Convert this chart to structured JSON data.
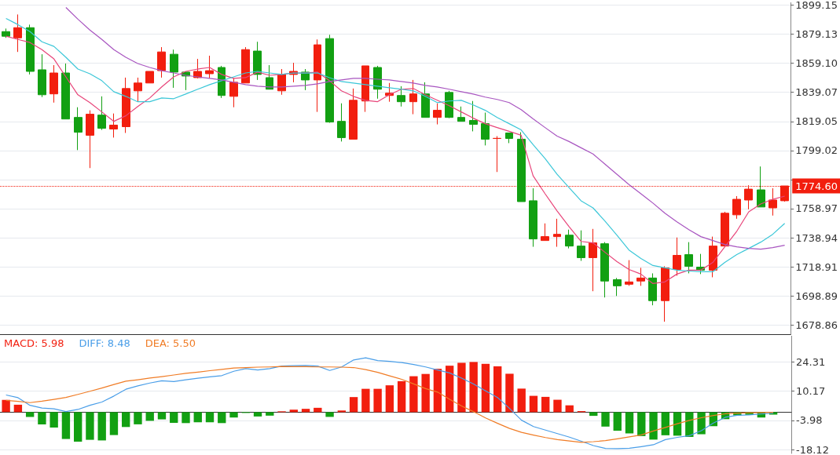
{
  "chart_data": [
    {
      "type": "candlestick",
      "categories": [
        null,
        null,
        null,
        null,
        null,
        null,
        null,
        null,
        null,
        null,
        null,
        null,
        null,
        null,
        null,
        null,
        null,
        null,
        null,
        null,
        null,
        null,
        null,
        null,
        null,
        null,
        null,
        null,
        null,
        null,
        null,
        null,
        null,
        null,
        null,
        null,
        null,
        null,
        null,
        null,
        null,
        null,
        null,
        null,
        null,
        null,
        null,
        null,
        null,
        null,
        null,
        null,
        null,
        null,
        null,
        null,
        null,
        null,
        null,
        null,
        null,
        null,
        null,
        null,
        null,
        null
      ],
      "ohlc": [
        [
          1880.9,
          1883.0,
          1876.6,
          1877.7
        ],
        [
          1876.6,
          1892.7,
          1866.9,
          1883.6
        ],
        [
          1883.6,
          1885.7,
          1851.4,
          1853.5
        ],
        [
          1854.6,
          1865.3,
          1835.8,
          1837.4
        ],
        [
          1838.0,
          1857.8,
          1832.0,
          1852.4
        ],
        [
          1852.4,
          1858.9,
          1820.7,
          1820.7
        ],
        [
          1821.8,
          1828.8,
          1799.3,
          1811.6
        ],
        [
          1809.5,
          1826.7,
          1786.9,
          1824.0
        ],
        [
          1823.4,
          1836.3,
          1813.2,
          1814.3
        ],
        [
          1813.8,
          1824.5,
          1807.9,
          1816.5
        ],
        [
          1815.4,
          1849.2,
          1811.1,
          1841.7
        ],
        [
          1840.1,
          1849.2,
          1832.6,
          1845.5
        ],
        [
          1845.5,
          1853.5,
          1845.5,
          1853.5
        ],
        [
          1854.0,
          1870.2,
          1849.2,
          1866.9
        ],
        [
          1865.3,
          1868.5,
          1842.2,
          1853.0
        ],
        [
          1853.0,
          1853.5,
          1840.6,
          1850.3
        ],
        [
          1849.2,
          1862.1,
          1848.7,
          1853.5
        ],
        [
          1851.9,
          1864.3,
          1848.7,
          1854.0
        ],
        [
          1856.2,
          1857.3,
          1835.2,
          1836.9
        ],
        [
          1836.3,
          1848.7,
          1828.8,
          1846.0
        ],
        [
          1845.5,
          1870.2,
          1845.5,
          1868.5
        ],
        [
          1867.5,
          1873.9,
          1847.6,
          1851.4
        ],
        [
          1849.2,
          1857.8,
          1841.2,
          1841.2
        ],
        [
          1840.1,
          1855.1,
          1837.4,
          1851.4
        ],
        [
          1851.4,
          1859.4,
          1846.0,
          1853.5
        ],
        [
          1853.0,
          1855.1,
          1840.6,
          1847.6
        ],
        [
          1847.6,
          1875.5,
          1825.6,
          1871.8
        ],
        [
          1876.1,
          1878.7,
          1818.1,
          1818.6
        ],
        [
          1819.1,
          1831.5,
          1805.2,
          1807.9
        ],
        [
          1806.8,
          1841.7,
          1806.8,
          1833.6
        ],
        [
          1833.1,
          1857.3,
          1825.6,
          1857.3
        ],
        [
          1856.2,
          1857.3,
          1834.7,
          1841.2
        ],
        [
          1836.9,
          1845.5,
          1832.6,
          1838.5
        ],
        [
          1836.9,
          1843.3,
          1829.3,
          1832.6
        ],
        [
          1832.6,
          1847.6,
          1824.0,
          1838.0
        ],
        [
          1838.0,
          1846.0,
          1821.8,
          1821.8
        ],
        [
          1821.8,
          1831.5,
          1817.0,
          1826.7
        ],
        [
          1839.0,
          1840.1,
          1821.3,
          1821.8
        ],
        [
          1821.8,
          1829.3,
          1819.1,
          1819.1
        ],
        [
          1819.7,
          1833.1,
          1812.2,
          1817.0
        ],
        [
          1817.5,
          1825.1,
          1802.5,
          1806.8
        ],
        [
          1807.3,
          1808.9,
          1784.2,
          1807.4
        ],
        [
          1811.1,
          1811.1,
          1804.1,
          1807.3
        ],
        [
          1806.8,
          1811.6,
          1763.8,
          1763.8
        ],
        [
          1764.4,
          1773.0,
          1732.7,
          1738.1
        ],
        [
          1737.0,
          1748.8,
          1737.0,
          1739.7
        ],
        [
          1739.7,
          1752.0,
          1732.7,
          1741.3
        ],
        [
          1740.7,
          1744.5,
          1731.6,
          1733.2
        ],
        [
          1733.2,
          1744.0,
          1723.0,
          1725.2
        ],
        [
          1725.2,
          1745.0,
          1702.1,
          1735.4
        ],
        [
          1734.8,
          1735.9,
          1697.8,
          1709.1
        ],
        [
          1710.1,
          1711.2,
          1698.8,
          1705.8
        ],
        [
          1706.9,
          1723.5,
          1705.8,
          1708.5
        ],
        [
          1709.1,
          1718.2,
          1705.8,
          1711.2
        ],
        [
          1711.2,
          1714.4,
          1692.4,
          1695.6
        ],
        [
          1695.6,
          1719.3,
          1681.1,
          1718.2
        ],
        [
          1717.1,
          1739.1,
          1712.8,
          1726.8
        ],
        [
          1727.3,
          1735.9,
          1714.4,
          1719.3
        ],
        [
          1718.7,
          1727.8,
          1713.9,
          1716.6
        ],
        [
          1716.6,
          1739.7,
          1711.7,
          1733.2
        ],
        [
          1733.2,
          1756.8,
          1733.2,
          1755.8
        ],
        [
          1754.7,
          1767.6,
          1752.0,
          1765.4
        ],
        [
          1764.9,
          1775.1,
          1758.5,
          1772.4
        ],
        [
          1771.9,
          1788.0,
          1760.1,
          1760.1
        ],
        [
          1759.5,
          1773.0,
          1754.2,
          1764.9
        ],
        [
          1764.4,
          1774.6,
          1763.8,
          1774.6
        ]
      ],
      "colors": [
        "#12a012",
        "#f21e0e",
        "#12a012",
        "#12a012",
        "#f21e0e",
        "#12a012",
        "#12a012",
        "#f21e0e",
        "#12a012",
        "#f21e0e",
        "#f21e0e",
        "#f21e0e",
        "#f21e0e",
        "#f21e0e",
        "#12a012",
        "#12a012",
        "#f21e0e",
        "#f21e0e",
        "#12a012",
        "#f21e0e",
        "#f21e0e",
        "#12a012",
        "#12a012",
        "#f21e0e",
        "#f21e0e",
        "#12a012",
        "#f21e0e",
        "#12a012",
        "#12a012",
        "#f21e0e",
        "#f21e0e",
        "#12a012",
        "#f21e0e",
        "#12a012",
        "#f21e0e",
        "#12a012",
        "#f21e0e",
        "#12a012",
        "#12a012",
        "#12a012",
        "#12a012",
        "#f21e0e",
        "#12a012",
        "#12a012",
        "#12a012",
        "#f21e0e",
        "#f21e0e",
        "#12a012",
        "#12a012",
        "#f21e0e",
        "#12a012",
        "#12a012",
        "#f21e0e",
        "#f21e0e",
        "#12a012",
        "#f21e0e",
        "#f21e0e",
        "#12a012",
        "#12a012",
        "#f21e0e",
        "#f21e0e",
        "#f21e0e",
        "#f21e0e",
        "#12a012",
        "#f21e0e",
        "#f21e0e"
      ],
      "series": [
        {
          "type": "line",
          "color": "#e8457a",
          "values": [
            1877.7,
            1875.5,
            1873.4,
            1868.5,
            1862.1,
            1849.7,
            1837.4,
            1832.0,
            1825.6,
            1819.1,
            1822.9,
            1829.3,
            1835.2,
            1842.8,
            1849.7,
            1853.5,
            1855.1,
            1856.2,
            1851.4,
            1848.7,
            1849.2,
            1853.0,
            1850.8,
            1851.4,
            1852.4,
            1852.4,
            1853.0,
            1847.1,
            1840.1,
            1836.3,
            1833.6,
            1832.6,
            1837.4,
            1841.2,
            1841.7,
            1837.4,
            1833.6,
            1829.9,
            1825.6,
            1821.3,
            1817.5,
            1814.8,
            1812.2,
            1809.5,
            1781.6,
            1769.2,
            1757.4,
            1746.6,
            1736.4,
            1735.4,
            1728.9,
            1722.5,
            1717.1,
            1713.9,
            1707.4,
            1708.5,
            1713.9,
            1716.6,
            1716.6,
            1721.9,
            1732.7,
            1743.4,
            1756.8,
            1762.2,
            1765.4,
            1767.6
          ]
        },
        {
          "type": "line",
          "color": "#3cc7d8",
          "values": [
            1890.0,
            1885.7,
            1880.9,
            1873.9,
            1870.7,
            1863.2,
            1855.1,
            1851.9,
            1847.1,
            1839.5,
            1836.3,
            1832.6,
            1832.6,
            1835.2,
            1834.7,
            1837.9,
            1841.2,
            1844.4,
            1847.1,
            1849.7,
            1852.4,
            1853.5,
            1852.4,
            1851.4,
            1852.4,
            1852.4,
            1852.4,
            1849.2,
            1846.5,
            1845.5,
            1844.4,
            1843.3,
            1842.2,
            1841.2,
            1840.1,
            1836.3,
            1832.0,
            1833.1,
            1833.6,
            1830.4,
            1826.7,
            1821.8,
            1817.5,
            1813.2,
            1803.0,
            1793.4,
            1782.6,
            1773.5,
            1764.4,
            1759.5,
            1750.4,
            1740.7,
            1730.5,
            1724.6,
            1719.8,
            1718.2,
            1716.6,
            1716.0,
            1715.5,
            1715.5,
            1721.9,
            1727.3,
            1731.6,
            1735.9,
            1741.3,
            1748.8
          ]
        },
        {
          "type": "line",
          "color": "#a855c0",
          "values": [
            null,
            null,
            null,
            null,
            null,
            1897.5,
            1889.5,
            1882.0,
            1875.5,
            1868.5,
            1863.2,
            1858.9,
            1856.2,
            1854.0,
            1852.4,
            1850.8,
            1849.7,
            1848.7,
            1847.6,
            1846.0,
            1844.4,
            1843.3,
            1842.8,
            1842.8,
            1843.3,
            1843.8,
            1844.9,
            1846.5,
            1847.6,
            1848.7,
            1848.7,
            1848.1,
            1847.6,
            1846.5,
            1845.5,
            1843.8,
            1842.8,
            1841.2,
            1839.5,
            1837.9,
            1835.8,
            1834.2,
            1832.0,
            1827.2,
            1820.8,
            1814.8,
            1808.9,
            1805.2,
            1800.9,
            1796.6,
            1789.6,
            1782.6,
            1775.6,
            1769.2,
            1762.8,
            1755.8,
            1749.9,
            1744.5,
            1739.7,
            1737.0,
            1734.3,
            1732.7,
            1731.6,
            1731.1,
            1732.1,
            1733.8
          ]
        }
      ],
      "ylim": [
        1672.5,
        1900.8
      ],
      "yticks": [
        1899.15,
        1879.13,
        {
          "value": 1859.1,
          "label": "1859.10"
        },
        1839.07,
        1819.05,
        1799.02,
        {
          "value": 1778.99,
          "label": null
        },
        1758.97,
        1738.94,
        1718.91,
        1698.89,
        1678.86
      ],
      "ref_lines": [
        {
          "axis": "y",
          "value": 1774.6,
          "label": "1774.60",
          "color": "#f21e0e",
          "line_style": "dotted"
        }
      ],
      "grid": "y",
      "tick_labels": "y",
      "marker": "none"
    },
    {
      "type": "bar",
      "categories": [
        null,
        null,
        null,
        null,
        null,
        null,
        null,
        null,
        null,
        null,
        null,
        null,
        null,
        null,
        null,
        null,
        null,
        null,
        null,
        null,
        null,
        null,
        null,
        null,
        null,
        null,
        null,
        null,
        null,
        null,
        null,
        null,
        null,
        null,
        null,
        null,
        null,
        null,
        null,
        null,
        null,
        null,
        null,
        null,
        null,
        null,
        null,
        null,
        null,
        null,
        null,
        null,
        null,
        null,
        null,
        null,
        null,
        null,
        null,
        null,
        null,
        null,
        null,
        null,
        null,
        null
      ],
      "series": [
        {
          "name": "MACD: 5.98",
          "type": "bar",
          "color": "#f21e0e",
          "colors": [
            "#f21e0e",
            "#f21e0e",
            "#12a012",
            "#12a012",
            "#12a012",
            "#12a012",
            "#12a012",
            "#12a012",
            "#12a012",
            "#12a012",
            "#12a012",
            "#12a012",
            "#12a012",
            "#12a012",
            "#12a012",
            "#12a012",
            "#12a012",
            "#12a012",
            "#12a012",
            "#12a012",
            "#12a012",
            "#12a012",
            "#12a012",
            "#f21e0e",
            "#f21e0e",
            "#f21e0e",
            "#f21e0e",
            "#12a012",
            "#f21e0e",
            "#f21e0e",
            "#f21e0e",
            "#f21e0e",
            "#f21e0e",
            "#f21e0e",
            "#f21e0e",
            "#f21e0e",
            "#f21e0e",
            "#f21e0e",
            "#f21e0e",
            "#f21e0e",
            "#f21e0e",
            "#f21e0e",
            "#f21e0e",
            "#f21e0e",
            "#f21e0e",
            "#f21e0e",
            "#f21e0e",
            "#f21e0e",
            "#f21e0e",
            "#12a012",
            "#12a012",
            "#12a012",
            "#12a012",
            "#12a012",
            "#12a012",
            "#12a012",
            "#12a012",
            "#12a012",
            "#12a012",
            "#12a012",
            "#12a012",
            "#12a012",
            "#12a012",
            "#12a012",
            "#12a012",
            "#12a012"
          ],
          "values": [
            5.9,
            3.6,
            -2.3,
            -5.9,
            -7.5,
            -13.0,
            -14.3,
            -13.4,
            -13.7,
            -11.1,
            -7.2,
            -5.9,
            -4.2,
            -3.5,
            -5.2,
            -5.3,
            -4.9,
            -4.9,
            -5.3,
            -2.6,
            -0.4,
            -2.1,
            -1.7,
            0.4,
            1.2,
            1.6,
            2.1,
            -2.3,
            0.8,
            7.3,
            11.3,
            11.3,
            13.0,
            15.0,
            17.4,
            18.5,
            21.0,
            22.5,
            23.9,
            24.3,
            23.4,
            22.2,
            18.6,
            11.4,
            7.9,
            7.4,
            6.0,
            3.3,
            0.5,
            -1.8,
            -7.0,
            -9.0,
            -10.3,
            -11.6,
            -13.3,
            -11.2,
            -11.4,
            -12.0,
            -10.7,
            -6.8,
            -3.4,
            -1.6,
            -1.3,
            -2.6,
            -1.2,
            null
          ]
        },
        {
          "name": "DIFF: 8.48",
          "type": "line",
          "color": "#4a9ee8",
          "values": [
            8.3,
            7.0,
            3.3,
            2.0,
            1.6,
            0.3,
            1.3,
            3.3,
            4.9,
            7.8,
            11.1,
            12.7,
            14.1,
            15.2,
            14.8,
            15.7,
            16.4,
            17.1,
            17.7,
            19.8,
            21.1,
            20.4,
            21.1,
            22.3,
            22.5,
            22.6,
            22.3,
            20.2,
            21.9,
            25.3,
            26.3,
            25.0,
            24.6,
            24.0,
            23.1,
            21.9,
            20.4,
            19.0,
            16.5,
            13.6,
            10.3,
            7.1,
            1.8,
            -3.9,
            -7.0,
            -8.7,
            -10.4,
            -12.1,
            -14.1,
            -16.2,
            -17.6,
            -17.7,
            -17.5,
            -16.7,
            -15.8,
            -13.3,
            -12.2,
            -11.4,
            -9.0,
            -5.3,
            -2.5,
            -1.5,
            -1.3,
            -0.9,
            -0.5,
            null
          ]
        },
        {
          "name": "DEA: 5.50",
          "type": "line",
          "color": "#f07c26",
          "values": [
            5.7,
            5.2,
            4.6,
            5.3,
            6.2,
            7.1,
            8.6,
            10.1,
            11.7,
            13.4,
            15.0,
            15.7,
            16.5,
            17.2,
            18.0,
            18.8,
            19.4,
            20.1,
            20.7,
            21.4,
            21.6,
            21.8,
            21.9,
            22.1,
            22.0,
            22.0,
            21.9,
            21.9,
            21.8,
            21.6,
            20.6,
            19.3,
            17.6,
            15.9,
            13.7,
            11.4,
            9.7,
            6.2,
            3.0,
            0.2,
            -2.8,
            -5.4,
            -7.9,
            -9.8,
            -11.1,
            -12.3,
            -13.3,
            -14.0,
            -14.6,
            -14.3,
            -13.8,
            -12.9,
            -12.0,
            -11.0,
            -9.1,
            -7.4,
            -5.6,
            -4.0,
            -2.7,
            -1.6,
            -0.8,
            -0.5,
            -0.3,
            -0.2,
            -0.1,
            null
          ]
        }
      ],
      "ylim": [
        -20,
        37
      ],
      "yticks": [
        24.31,
        10.17,
        -3.98,
        -18.12
      ],
      "grid": "y",
      "tick_labels": "y",
      "legend": "top left",
      "marker": "none"
    }
  ]
}
